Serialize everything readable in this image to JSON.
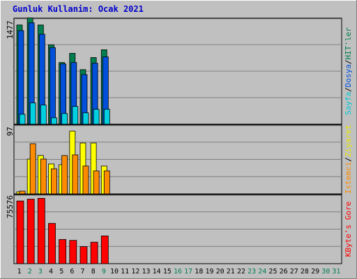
{
  "title": "Gunluk Kullanim: Ocak 2021",
  "colors": {
    "background": "#c0c0c0",
    "plot": "#c0c0c0",
    "grid": "#808080",
    "hits": "#007f4e",
    "files": "#0050dc",
    "pages": "#00d0e0",
    "visits": "#ffff00",
    "sites": "#ff8c00",
    "kbytes": "#ff0000",
    "title": "#0000cc",
    "day_black": "#000000",
    "day_weekend": "#007f4e"
  },
  "axis_max": {
    "hits": "1477",
    "visits": "97",
    "kbytes": "75576"
  },
  "legend": {
    "top": [
      {
        "text": "Sayfa",
        "color": "#00c8d8"
      },
      {
        "text": "/",
        "color": "#000000"
      },
      {
        "text": "Dosya",
        "color": "#0050dc"
      },
      {
        "text": "/",
        "color": "#000000"
      },
      {
        "text": "HIT'ler",
        "color": "#007f4e"
      }
    ],
    "middle": [
      {
        "text": "Istemci",
        "color": "#ff8c00"
      },
      {
        "text": "/",
        "color": "#000000"
      },
      {
        "text": "Ziyaret",
        "color": "#e8e800"
      }
    ],
    "bottom": [
      {
        "text": "KByte's Gore",
        "color": "#ff0000"
      }
    ]
  },
  "chart_data": {
    "type": "bar",
    "title": "Gunluk Kullanim: Ocak 2021",
    "days": [
      "1",
      "2",
      "3",
      "4",
      "5",
      "6",
      "7",
      "8",
      "9",
      "10",
      "11",
      "12",
      "13",
      "14",
      "15",
      "16",
      "17",
      "18",
      "19",
      "20",
      "21",
      "22",
      "23",
      "24",
      "25",
      "26",
      "27",
      "28",
      "29",
      "30",
      "31"
    ],
    "weekend_days": [
      "2",
      "3",
      "9",
      "16",
      "17",
      "23",
      "24",
      "30",
      "31"
    ],
    "panels": [
      {
        "ymax": 1477,
        "series": [
          {
            "name": "HIT'ler",
            "values": [
              1400,
              1500,
              1400,
              1120,
              870,
              1000,
              770,
              940,
              1050
            ]
          },
          {
            "name": "Dosya",
            "values": [
              1320,
              1430,
              1270,
              1080,
              850,
              870,
              700,
              860,
              950
            ]
          },
          {
            "name": "Sayfa",
            "values": [
              140,
              300,
              270,
              90,
              150,
              250,
              160,
              210,
              210
            ]
          }
        ]
      },
      {
        "ymax": 97,
        "series": [
          {
            "name": "Ziyaret",
            "values": [
              3,
              50,
              55,
              43,
              42,
              90,
              73,
              73,
              40
            ]
          },
          {
            "name": "Istemci",
            "values": [
              4,
              72,
              50,
              36,
              55,
              56,
              40,
              33,
              33
            ]
          }
        ]
      },
      {
        "ymax": 75576,
        "series": [
          {
            "name": "KByte",
            "values": [
              70000,
              72000,
              73000,
              45000,
              27000,
              26000,
              19000,
              24000,
              31000
            ]
          }
        ]
      }
    ]
  }
}
